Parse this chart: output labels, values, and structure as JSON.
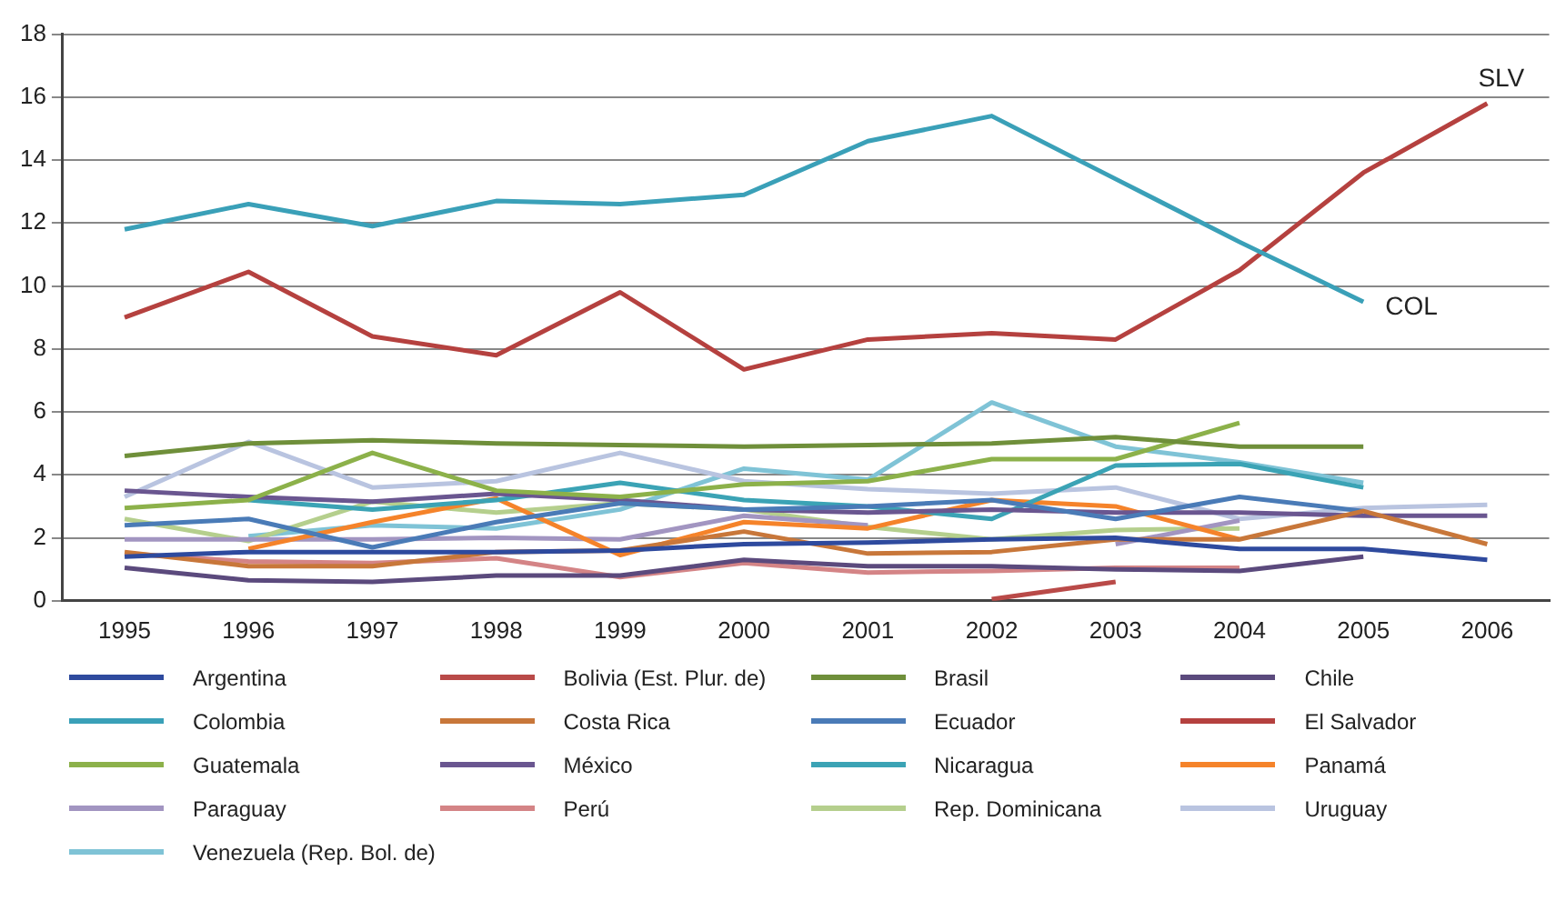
{
  "chart_data": {
    "type": "line",
    "categories": [
      "1995",
      "1996",
      "1997",
      "1998",
      "1999",
      "2000",
      "2001",
      "2002",
      "2003",
      "2004",
      "2005",
      "2006"
    ],
    "ylim": [
      0,
      18
    ],
    "yticks": [
      0,
      2,
      4,
      6,
      8,
      10,
      12,
      14,
      16,
      18
    ],
    "grid": "y",
    "legend": "bottom",
    "marker": "none",
    "line_style": "solid",
    "annotations": [
      {
        "text": "SLV",
        "x": "2006",
        "y": 15.8
      },
      {
        "text": "COL",
        "x": "2005",
        "y": 9.5
      }
    ],
    "series": [
      {
        "name": "Argentina",
        "color": "#2e4a9e",
        "values": [
          1.4,
          1.55,
          1.55,
          1.55,
          1.6,
          1.8,
          1.85,
          1.95,
          2.0,
          1.65,
          1.65,
          1.3
        ]
      },
      {
        "name": "Bolivia (Est. Plur. de)",
        "color": "#b94a48",
        "values": [
          null,
          null,
          null,
          null,
          null,
          null,
          null,
          0.05,
          0.6,
          null,
          null,
          null
        ]
      },
      {
        "name": "Brasil",
        "color": "#6f8f3a",
        "values": [
          4.6,
          5.0,
          5.1,
          5.0,
          4.95,
          4.9,
          4.95,
          5.0,
          5.2,
          4.9,
          4.9,
          null
        ]
      },
      {
        "name": "Chile",
        "color": "#5b4a7d",
        "values": [
          1.05,
          0.65,
          0.6,
          0.8,
          0.8,
          1.3,
          1.1,
          1.1,
          1.0,
          0.95,
          1.4,
          null
        ]
      },
      {
        "name": "Colombia",
        "color": "#3aa0b8",
        "values": [
          11.8,
          12.6,
          11.9,
          12.7,
          12.6,
          12.9,
          14.6,
          15.4,
          13.4,
          11.4,
          9.5,
          null
        ]
      },
      {
        "name": "Costa Rica",
        "color": "#c8773a",
        "values": [
          1.55,
          1.1,
          1.1,
          1.55,
          1.6,
          2.2,
          1.5,
          1.55,
          1.95,
          1.95,
          2.85,
          1.8
        ]
      },
      {
        "name": "Ecuador",
        "color": "#4a7bb7",
        "values": [
          2.4,
          2.6,
          1.7,
          2.5,
          3.1,
          2.9,
          3.0,
          3.2,
          2.6,
          3.3,
          2.85,
          null
        ]
      },
      {
        "name": "El Salvador",
        "color": "#b5413f",
        "values": [
          9.0,
          10.45,
          8.4,
          7.8,
          9.8,
          7.35,
          8.3,
          8.5,
          8.3,
          10.5,
          13.6,
          15.8
        ]
      },
      {
        "name": "Guatemala",
        "color": "#8cb14a",
        "values": [
          2.95,
          3.2,
          4.7,
          3.5,
          3.3,
          3.7,
          3.8,
          4.5,
          4.5,
          5.65,
          null,
          null
        ]
      },
      {
        "name": "México",
        "color": "#6a5690",
        "values": [
          3.5,
          3.3,
          3.15,
          3.4,
          3.2,
          2.9,
          2.8,
          2.9,
          2.8,
          2.8,
          2.7,
          2.7
        ]
      },
      {
        "name": "Nicaragua",
        "color": "#3ba3b5",
        "values": [
          null,
          3.2,
          2.9,
          3.2,
          3.75,
          3.2,
          3.0,
          2.6,
          4.3,
          4.35,
          3.6,
          null
        ]
      },
      {
        "name": "Panamá",
        "color": "#f5832a",
        "values": [
          null,
          1.65,
          2.5,
          3.25,
          1.45,
          2.5,
          2.3,
          3.2,
          3.0,
          1.95,
          null,
          null
        ]
      },
      {
        "name": "Paraguay",
        "color": "#a295c1",
        "values": [
          1.95,
          1.95,
          1.95,
          2.0,
          1.95,
          2.7,
          2.4,
          null,
          1.8,
          2.55,
          null,
          null
        ]
      },
      {
        "name": "Perú",
        "color": "#d48486",
        "values": [
          1.5,
          1.25,
          1.2,
          1.35,
          0.75,
          1.2,
          0.9,
          0.95,
          1.05,
          1.05,
          null,
          null
        ]
      },
      {
        "name": "Rep. Dominicana",
        "color": "#b5cf8d",
        "values": [
          2.6,
          1.9,
          3.15,
          2.8,
          3.1,
          2.9,
          2.35,
          1.95,
          2.25,
          2.3,
          null,
          null
        ]
      },
      {
        "name": "Uruguay",
        "color": "#b9c4e0",
        "values": [
          3.3,
          5.05,
          3.6,
          3.8,
          4.7,
          3.8,
          3.55,
          3.4,
          3.6,
          2.6,
          2.95,
          3.05
        ]
      },
      {
        "name": "Venezuela (Rep. Bol. de)",
        "color": "#7fc3d6",
        "values": [
          null,
          2.05,
          2.4,
          2.3,
          2.9,
          4.2,
          3.85,
          6.3,
          4.9,
          4.4,
          3.75,
          null
        ]
      }
    ]
  }
}
